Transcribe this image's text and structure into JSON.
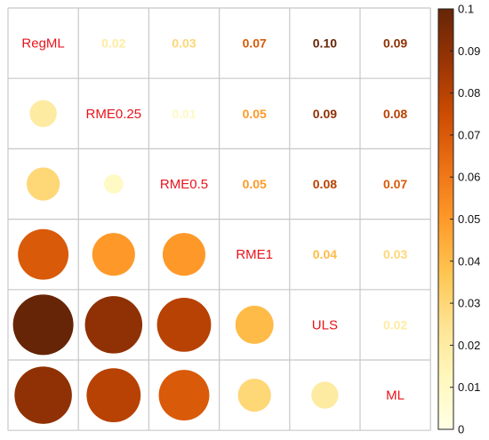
{
  "chart_data": {
    "type": "heatmap",
    "variables": [
      "RegML",
      "RME0.25",
      "RME0.5",
      "RME1",
      "ULS",
      "ML"
    ],
    "matrix": [
      [
        null,
        0.02,
        0.03,
        0.07,
        0.1,
        0.09
      ],
      [
        0.02,
        null,
        0.01,
        0.05,
        0.09,
        0.08
      ],
      [
        0.03,
        0.01,
        null,
        0.05,
        0.08,
        0.07
      ],
      [
        0.07,
        0.05,
        0.05,
        null,
        0.04,
        0.03
      ],
      [
        0.1,
        0.09,
        0.08,
        0.04,
        null,
        0.02
      ],
      [
        0.09,
        0.08,
        0.07,
        0.03,
        0.02,
        null
      ]
    ],
    "upper_labels": [
      [
        "0.02",
        "0.03",
        "0.07",
        "0.10",
        "0.09"
      ],
      [
        "0.01",
        "0.05",
        "0.09",
        "0.08"
      ],
      [
        "0.05",
        "0.08",
        "0.07"
      ],
      [
        "0.04",
        "0.03"
      ],
      [
        "0.02"
      ]
    ],
    "lower_display": "circle",
    "upper_display": "number",
    "colorbar": {
      "range": [
        0,
        0.1
      ],
      "ticks": [
        "0",
        "0.01",
        "0.02",
        "0.03",
        "0.04",
        "0.05",
        "0.06",
        "0.07",
        "0.08",
        "0.09",
        "0.1"
      ],
      "colors": [
        "#ffffe5",
        "#fff7bc",
        "#fee391",
        "#fec44f",
        "#fe9929",
        "#ec7014",
        "#cc4c02",
        "#993404",
        "#662506"
      ]
    },
    "diagonal_label_color": "#e8141c",
    "grid": true
  }
}
